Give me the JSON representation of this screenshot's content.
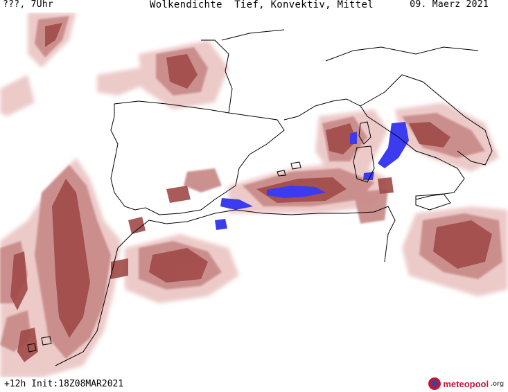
{
  "header": {
    "valid_time": "???, 7Uhr",
    "title": "Wolkendichte  Tief, Konvektiv, Mittel",
    "date": "09. Maerz 2021"
  },
  "footer": {
    "forecast_info": "+12h Init:18Z08MAR2021",
    "brand": "meteopool",
    "brand_tld": ".org"
  },
  "map": {
    "region": "Westliches Mittelmeer / Iberische Halbinsel / Nordafrika",
    "colors": {
      "background": "#ffffff",
      "coastline": "#000000",
      "cloud_light": "#ebc8c6",
      "cloud_medium": "#c98c8a",
      "cloud_dense": "#a04a48",
      "convective": "#3b3bf0"
    }
  }
}
